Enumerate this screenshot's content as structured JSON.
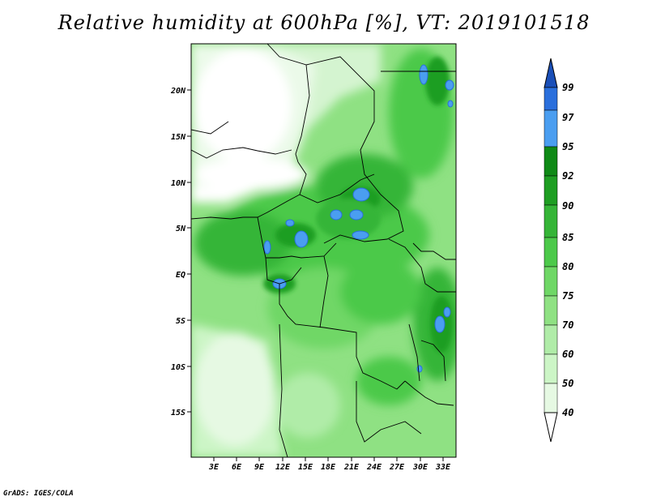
{
  "title": "Relative humidity at 600hPa [%], VT: 2019101518",
  "credit": "GrADS: IGES/COLA",
  "map": {
    "lat_ticks": [
      "20N",
      "15N",
      "10N",
      "5N",
      "EQ",
      "5S",
      "10S",
      "15S"
    ],
    "lon_ticks": [
      "3E",
      "6E",
      "9E",
      "12E",
      "15E",
      "18E",
      "21E",
      "24E",
      "27E",
      "30E",
      "33E"
    ]
  },
  "colorbar": {
    "levels": [
      "40",
      "50",
      "60",
      "70",
      "75",
      "80",
      "85",
      "90",
      "92",
      "95",
      "97",
      "99"
    ],
    "colors": [
      "#ffffff",
      "#e6f9e3",
      "#ccf5c6",
      "#b0eca8",
      "#8fe183",
      "#6fd766",
      "#4cc94a",
      "#35b537",
      "#1e9e22",
      "#0f8a16",
      "#4a9ef0",
      "#2a6fdc",
      "#1a4fb8"
    ]
  }
}
